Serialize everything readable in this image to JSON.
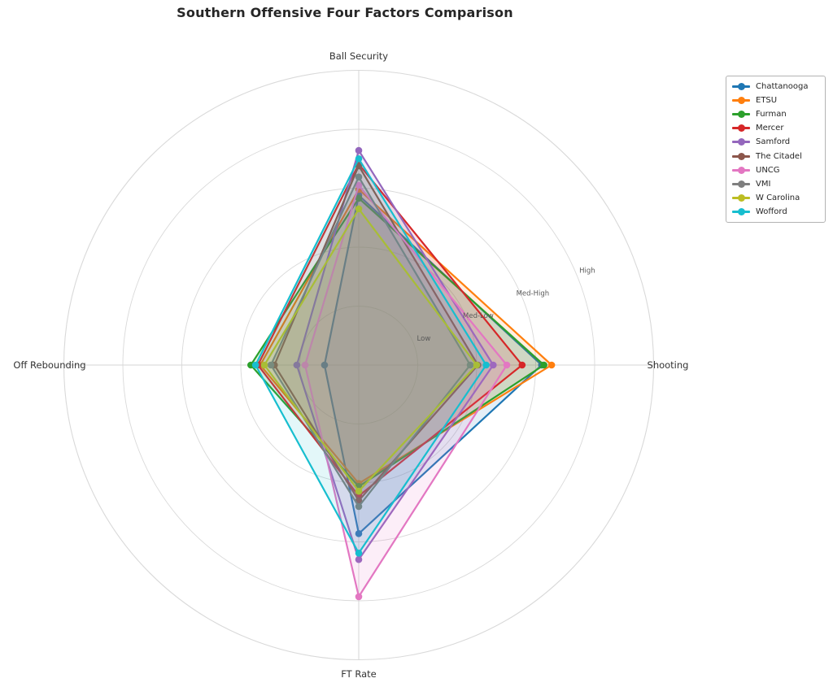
{
  "chart_data": {
    "type": "radar",
    "title": "Southern Offensive Four Factors Comparison",
    "axes": [
      "Ball Security",
      "Shooting",
      "FT Rate",
      "Off Rebounding"
    ],
    "radial_tick_labels": [
      "Low",
      "Med-Low",
      "Med-High",
      "High"
    ],
    "radial_tick_values": [
      1,
      2,
      3,
      4
    ],
    "r_max": 5,
    "tick_label_angle_deg": 22.5,
    "grid": true,
    "grid_color": "#d9d9d9",
    "legend_position": "upper right",
    "series": [
      {
        "name": "Chattanooga",
        "color": "#1f77b4",
        "values": [
          2.88,
          3.1,
          2.86,
          0.58
        ]
      },
      {
        "name": "ETSU",
        "color": "#ff7f0e",
        "values": [
          2.98,
          3.27,
          2.01,
          1.67
        ]
      },
      {
        "name": "Furman",
        "color": "#2ca02c",
        "values": [
          2.83,
          3.14,
          2.06,
          1.83
        ]
      },
      {
        "name": "Mercer",
        "color": "#d62728",
        "values": [
          3.41,
          2.77,
          2.22,
          1.71
        ]
      },
      {
        "name": "Samford",
        "color": "#9467bd",
        "values": [
          3.64,
          2.28,
          3.3,
          1.05
        ]
      },
      {
        "name": "The Citadel",
        "color": "#8c564b",
        "values": [
          3.38,
          2.02,
          2.3,
          1.43
        ]
      },
      {
        "name": "UNCG",
        "color": "#e377c2",
        "values": [
          3.05,
          2.51,
          3.93,
          0.91
        ]
      },
      {
        "name": "VMI",
        "color": "#7f7f7f",
        "values": [
          3.19,
          1.89,
          2.4,
          1.49
        ]
      },
      {
        "name": "W Carolina",
        "color": "#bcbd22",
        "values": [
          2.65,
          2.0,
          2.14,
          1.6
        ]
      },
      {
        "name": "Wofford",
        "color": "#17becf",
        "values": [
          3.5,
          2.16,
          3.19,
          1.75
        ]
      }
    ]
  }
}
